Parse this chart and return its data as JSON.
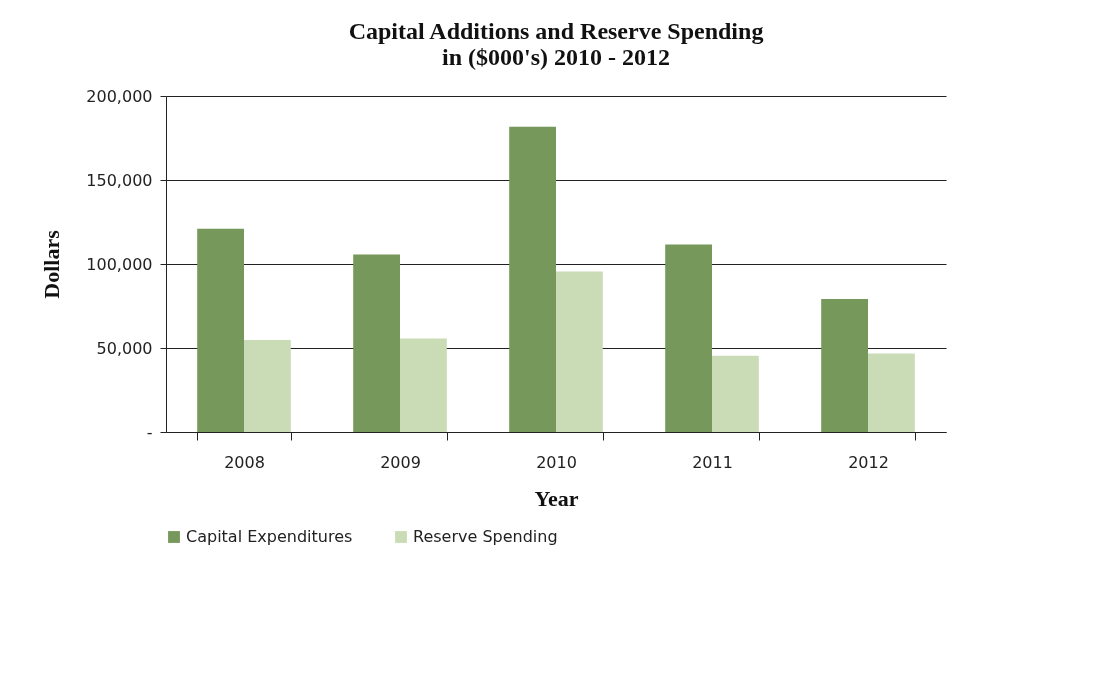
{
  "chart_data": {
    "type": "bar",
    "title": "Capital Additions and Reserve Spending\nin ($000's) 2010 - 2012",
    "xlabel": "Year",
    "ylabel": "Dollars",
    "categories": [
      "2008",
      "2009",
      "2010",
      "2011",
      "2012"
    ],
    "series": [
      {
        "name": "Capital Expenditures",
        "color": "#76985a",
        "values": [
          121000,
          105700,
          181700,
          111600,
          79200
        ]
      },
      {
        "name": "Reserve Spending",
        "color": "#c9dcb5",
        "values": [
          54700,
          55700,
          95500,
          45400,
          46800
        ]
      }
    ],
    "ylim": [
      0,
      200000
    ],
    "yticks": [
      {
        "value": 0,
        "label": "-"
      },
      {
        "value": 50000,
        "label": "50,000"
      },
      {
        "value": 100000,
        "label": "100,000"
      },
      {
        "value": 150000,
        "label": "150,000"
      },
      {
        "value": 200000,
        "label": "200,000"
      }
    ],
    "grid": "y",
    "legend": "bottom"
  }
}
